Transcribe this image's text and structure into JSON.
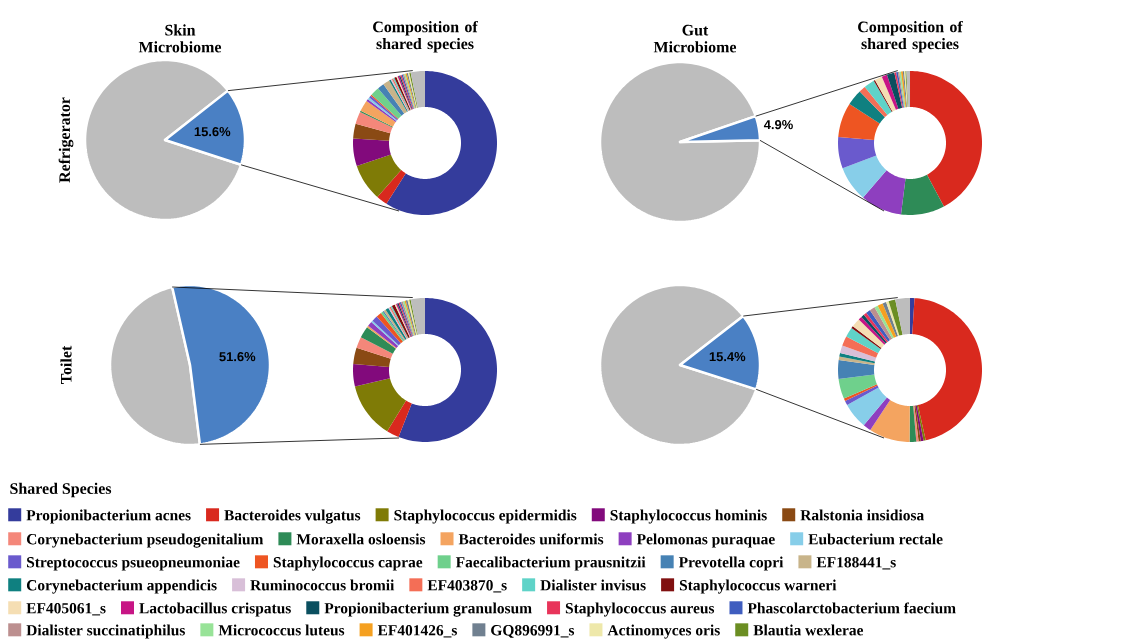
{
  "chart_data": [
    {
      "type": "pie",
      "title": "Skin Microbiome",
      "ylabel": "Refrigerator",
      "categories": [
        null,
        null
      ],
      "values": [
        84.4,
        15.6
      ],
      "value_labels": [
        null,
        "15.6%"
      ],
      "colors": [
        "#bdbdbd",
        "#4a80c4"
      ]
    },
    {
      "type": "donut",
      "title": "Composition of shared species",
      "legend": "bottom",
      "legend_title": "Shared Species",
      "categories": [
        "Propionibacterium acnes",
        "Bacteroides vulgatus",
        "Staphylococcus epidermidis",
        "Staphylococcus hominis",
        "Ralstonia insidiosa",
        "Corynebacterium pseudogenitalium",
        "Moraxella osloensis",
        "Bacteroides uniformis",
        "Pelomonas puraquae",
        "Eubacterium rectale",
        "Streptococcus psueopneumoniae",
        "Staphylococcus caprae",
        "Faecalibacterium prausnitzii",
        "Prevotella copri",
        "EF188441_s",
        "Corynebacterium appendicis",
        "Ruminococcus bromii",
        "EF403870_s",
        "Dialister invisus",
        "Staphylococcus warneri",
        "EF405061_s",
        "Lactobacillus crispatus",
        "Propionibacterium granulosum",
        "Staphylococcus aureus",
        "Phascolarctobacterium faecium",
        "Dialister succinatiphilus",
        "Micrococcus luteus",
        "EF401426_s",
        "GQ896991_s",
        "Actinomyces oris",
        "Blautia wexlerae",
        null
      ],
      "colors": [
        "#343c9c",
        "#d9291e",
        "#7f7b06",
        "#820a7c",
        "#8a4a14",
        "#f4877a",
        "#2e8b57",
        "#f4a460",
        "#8e3fbf",
        "#87cee9",
        "#6a5acd",
        "#ee5522",
        "#6fd08c",
        "#4682b4",
        "#c8b48a",
        "#0f8080",
        "#d8bfd8",
        "#f46e56",
        "#5fd3c8",
        "#801010",
        "#f5deb3",
        "#c71585",
        "#0a4f5f",
        "#e8345a",
        "#3f5dbf",
        "#bc8f8f",
        "#98e398",
        "#f5a020",
        "#708090",
        "#eee8aa",
        "#6b8e23",
        "#bdbdbd"
      ],
      "values": [
        59,
        2.5,
        8.3,
        6.2,
        3.3,
        2.8,
        0.3,
        2.5,
        0.5,
        0.5,
        0.5,
        0.3,
        2,
        1.5,
        1.5,
        0.4,
        0.3,
        0.3,
        0.3,
        0.5,
        0.3,
        0.3,
        0.3,
        0.3,
        0.3,
        0.3,
        0.3,
        0.3,
        0.3,
        0.3,
        0.3,
        3.2
      ]
    },
    {
      "type": "pie",
      "title": "Gut Microbiome",
      "categories": [
        null,
        null
      ],
      "values": [
        95.1,
        4.9
      ],
      "value_labels": [
        null,
        "4.9%"
      ],
      "colors": [
        "#bdbdbd",
        "#4a80c4"
      ]
    },
    {
      "type": "donut",
      "title": "Composition of shared species",
      "categories": [
        null,
        null,
        null,
        null,
        null,
        null,
        null,
        null,
        null,
        null,
        null,
        null,
        null,
        null,
        null,
        null,
        null,
        null,
        null,
        null,
        null,
        null,
        null,
        null,
        null,
        null,
        null,
        null,
        null,
        null,
        null,
        null
      ],
      "colors": [
        "#343c9c",
        "#d9291e",
        "#7f7b06",
        "#820a7c",
        "#8a4a14",
        "#f4877a",
        "#2e8b57",
        "#f4a460",
        "#8e3fbf",
        "#87cee9",
        "#6a5acd",
        "#ee5522",
        "#6fd08c",
        "#4682b4",
        "#c8b48a",
        "#0f8080",
        "#d8bfd8",
        "#f46e56",
        "#5fd3c8",
        "#801010",
        "#f5deb3",
        "#c71585",
        "#0a4f5f",
        "#e8345a",
        "#3f5dbf",
        "#bc8f8f",
        "#98e398",
        "#f5a020",
        "#708090",
        "#eee8aa",
        "#6b8e23",
        "#bdbdbd"
      ],
      "values": [
        0,
        42.2,
        0,
        0,
        0,
        0,
        9.8,
        0,
        9.3,
        8,
        7,
        7.8,
        0,
        0,
        0,
        3.6,
        0,
        1.5,
        2.4,
        0.3,
        1.7,
        1.2,
        1.7,
        0.4,
        0.4,
        0.3,
        0.4,
        0.4,
        0.3,
        0.3,
        0.2,
        0.8
      ]
    },
    {
      "type": "pie",
      "ylabel": "Toilet",
      "categories": [
        null,
        null
      ],
      "values": [
        48.4,
        51.6
      ],
      "value_labels": [
        null,
        "51.6%"
      ],
      "colors": [
        "#bdbdbd",
        "#4a80c4"
      ]
    },
    {
      "type": "donut",
      "categories": [
        null,
        null,
        null,
        null,
        null,
        null,
        null,
        null,
        null,
        null,
        null,
        null,
        null,
        null,
        null,
        null,
        null,
        null,
        null,
        null,
        null,
        null,
        null,
        null,
        null,
        null,
        null,
        null,
        null,
        null,
        null,
        null
      ],
      "colors": [
        "#343c9c",
        "#d9291e",
        "#7f7b06",
        "#820a7c",
        "#8a4a14",
        "#f4877a",
        "#2e8b57",
        "#f4a460",
        "#8e3fbf",
        "#87cee9",
        "#6a5acd",
        "#ee5522",
        "#6fd08c",
        "#4682b4",
        "#c8b48a",
        "#0f8080",
        "#d8bfd8",
        "#f46e56",
        "#5fd3c8",
        "#801010",
        "#f5deb3",
        "#c71585",
        "#0a4f5f",
        "#e8345a",
        "#3f5dbf",
        "#bc8f8f",
        "#98e398",
        "#f5a020",
        "#708090",
        "#eee8aa",
        "#6b8e23",
        "#bdbdbd"
      ],
      "values": [
        56,
        2.8,
        12.5,
        5,
        3.7,
        2.5,
        2.6,
        0.4,
        1.1,
        0.4,
        1.3,
        1.2,
        0.5,
        0.3,
        0.5,
        0.7,
        0.3,
        0.3,
        0.3,
        0.7,
        0.3,
        0.3,
        0.3,
        0.3,
        0.3,
        0.4,
        0.4,
        0.3,
        0.4,
        0.4,
        0.3,
        3.2
      ]
    },
    {
      "type": "pie",
      "categories": [
        null,
        null
      ],
      "values": [
        84.6,
        15.4
      ],
      "value_labels": [
        null,
        "15.4%"
      ],
      "colors": [
        "#bdbdbd",
        "#4a80c4"
      ]
    },
    {
      "type": "donut",
      "categories": [
        null,
        null,
        null,
        null,
        null,
        null,
        null,
        null,
        null,
        null,
        null,
        null,
        null,
        null,
        null,
        null,
        null,
        null,
        null,
        null,
        null,
        null,
        null,
        null,
        null,
        null,
        null,
        null,
        null,
        null,
        null,
        null
      ],
      "colors": [
        "#343c9c",
        "#d9291e",
        "#7f7b06",
        "#820a7c",
        "#8a4a14",
        "#f4877a",
        "#2e8b57",
        "#f4a460",
        "#8e3fbf",
        "#87cee9",
        "#6a5acd",
        "#ee5522",
        "#6fd08c",
        "#4682b4",
        "#c8b48a",
        "#0f8080",
        "#d8bfd8",
        "#f46e56",
        "#5fd3c8",
        "#801010",
        "#f5deb3",
        "#c71585",
        "#0a4f5f",
        "#e8345a",
        "#3f5dbf",
        "#bc8f8f",
        "#98e398",
        "#f5a020",
        "#708090",
        "#eee8aa",
        "#6b8e23",
        "#bdbdbd"
      ],
      "values": [
        1,
        45.5,
        0.5,
        0.6,
        0.5,
        0.5,
        1.5,
        9.2,
        1.8,
        5.8,
        1,
        0.6,
        4.5,
        4.2,
        0.8,
        0.8,
        1.7,
        2.2,
        2.2,
        0.5,
        2,
        0.8,
        0.7,
        0.7,
        1,
        1.2,
        0.8,
        1.2,
        0.8,
        0.6,
        1.5,
        3.3
      ]
    }
  ]
}
